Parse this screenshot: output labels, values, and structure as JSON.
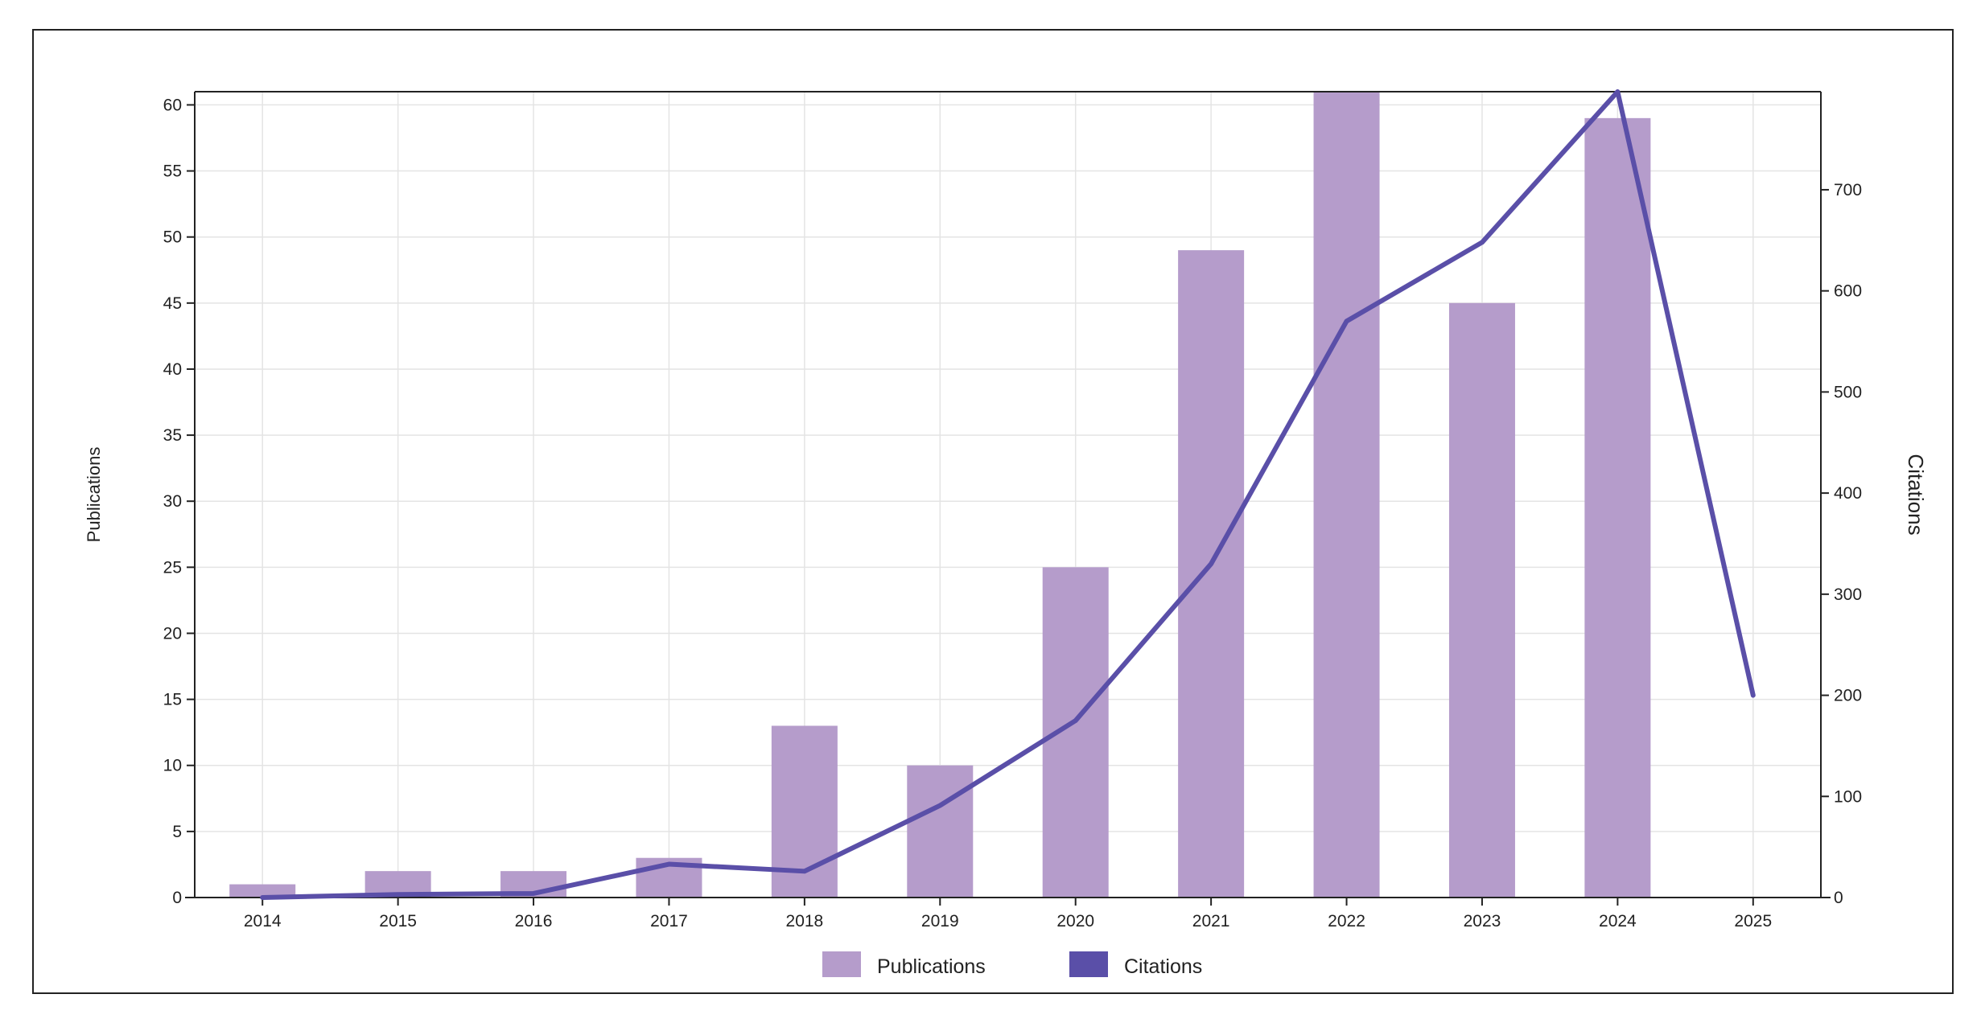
{
  "chart_data": {
    "type": "bar+line",
    "categories": [
      "2014",
      "2015",
      "2016",
      "2017",
      "2018",
      "2019",
      "2020",
      "2021",
      "2022",
      "2023",
      "2024",
      "2025"
    ],
    "series": [
      {
        "name": "Publications",
        "type": "bar",
        "axis": "left",
        "color": "#b59ccb",
        "values": [
          1,
          2,
          2,
          3,
          13,
          10,
          25,
          49,
          61,
          45,
          59,
          null
        ]
      },
      {
        "name": "Citations",
        "type": "line",
        "axis": "right",
        "color": "#5a4fa8",
        "values": [
          0,
          3,
          4,
          33,
          26,
          91,
          175,
          330,
          570,
          648,
          797,
          200
        ]
      }
    ],
    "ylabel": "Publications",
    "y2label": "Citations",
    "ylim": [
      0,
      61
    ],
    "y2lim": [
      0,
      797
    ],
    "yticks": [
      0,
      5,
      10,
      15,
      20,
      25,
      30,
      35,
      40,
      45,
      50,
      55,
      60
    ],
    "y2ticks": [
      0,
      100,
      200,
      300,
      400,
      500,
      600,
      700
    ],
    "grid": true,
    "legend": "bottom-center"
  }
}
